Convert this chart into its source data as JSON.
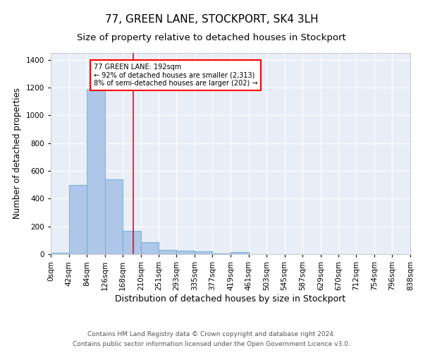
{
  "title": "77, GREEN LANE, STOCKPORT, SK4 3LH",
  "subtitle": "Size of property relative to detached houses in Stockport",
  "xlabel": "Distribution of detached houses by size in Stockport",
  "ylabel": "Number of detached properties",
  "footnote1": "Contains HM Land Registry data © Crown copyright and database right 2024.",
  "footnote2": "Contains public sector information licensed under the Open Government Licence v3.0.",
  "annotation_line1": "77 GREEN LANE: 192sqm",
  "annotation_line2": "← 92% of detached houses are smaller (2,313)",
  "annotation_line3": "8% of semi-detached houses are larger (202) →",
  "bar_color": "#aec6e8",
  "bar_edge_color": "#6aaad4",
  "red_line_x": 192,
  "background_color": "#e8eef8",
  "bin_edges": [
    0,
    42,
    84,
    126,
    168,
    210,
    251,
    293,
    335,
    377,
    419,
    461,
    503,
    545,
    587,
    629,
    670,
    712,
    754,
    796,
    838
  ],
  "bar_heights": [
    10,
    500,
    1190,
    540,
    170,
    85,
    30,
    25,
    18,
    5,
    15,
    0,
    0,
    0,
    0,
    0,
    0,
    0,
    0,
    0
  ],
  "ylim": [
    0,
    1450
  ],
  "yticks": [
    0,
    200,
    400,
    600,
    800,
    1000,
    1200,
    1400
  ],
  "grid_color": "#ffffff",
  "title_fontsize": 11,
  "subtitle_fontsize": 9.5,
  "xlabel_fontsize": 9,
  "ylabel_fontsize": 8.5,
  "tick_fontsize": 7.5,
  "footnote_fontsize": 6.5
}
